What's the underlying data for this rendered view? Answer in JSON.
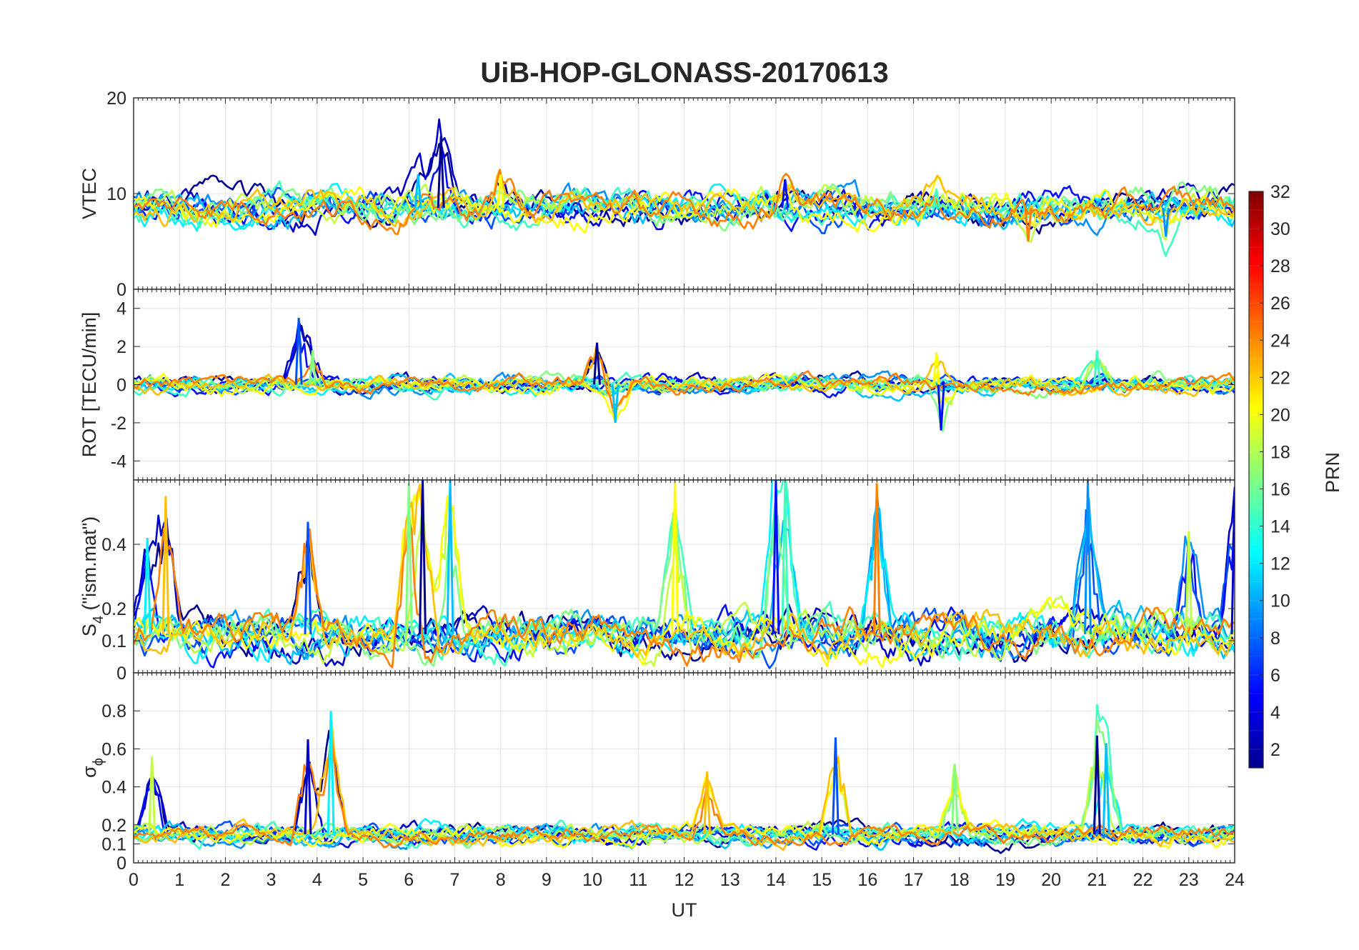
{
  "chart_data": {
    "type": "line",
    "title": "UiB-HOP-GLONASS-20170613",
    "x_axis": {
      "label": "UT",
      "range": [
        0,
        24
      ],
      "ticks": [
        0,
        1,
        2,
        3,
        4,
        5,
        6,
        7,
        8,
        9,
        10,
        11,
        12,
        13,
        14,
        15,
        16,
        17,
        18,
        19,
        20,
        21,
        22,
        23,
        24
      ]
    },
    "grid": true,
    "panels": [
      {
        "id": "vtec",
        "ylabel": "VTEC",
        "ylim": [
          0,
          20
        ],
        "yticks": [
          0,
          10,
          20
        ],
        "baseline": 8.5,
        "amplitude": 1.3,
        "features": [
          {
            "x": 6.7,
            "y": 16
          },
          {
            "x": 6.2,
            "y": 12
          },
          {
            "x": 8.0,
            "y": 12
          },
          {
            "x": 14.2,
            "y": 11.5
          },
          {
            "x": 17.5,
            "y": 10.5
          },
          {
            "x": 19.5,
            "y": 5
          },
          {
            "x": 22.5,
            "y": 5.5
          }
        ]
      },
      {
        "id": "rot",
        "ylabel": "ROT [TECU/min]",
        "ylim": [
          -5,
          5
        ],
        "yticks": [
          -4,
          -2,
          0,
          2,
          4
        ],
        "baseline": 0,
        "amplitude": 0.35,
        "features": [
          {
            "x": 3.6,
            "y": 3.5
          },
          {
            "x": 3.9,
            "y": 1.8
          },
          {
            "x": 10.1,
            "y": 2.2
          },
          {
            "x": 10.5,
            "y": -2.0
          },
          {
            "x": 17.5,
            "y": 1.7
          },
          {
            "x": 17.6,
            "y": -2.4
          },
          {
            "x": 21.0,
            "y": 1.8
          }
        ]
      },
      {
        "id": "s4",
        "ylabel": "S",
        "ylabel_sub": "4",
        "ylabel_tail": " (\"ism.mat\")",
        "ylim": [
          0,
          0.6
        ],
        "yticks": [
          0,
          0.1,
          0.2,
          0.4
        ],
        "baseline": 0.12,
        "amplitude": 0.05,
        "features": [
          {
            "x": 0.3,
            "y": 0.42
          },
          {
            "x": 0.7,
            "y": 0.55
          },
          {
            "x": 3.8,
            "y": 0.47
          },
          {
            "x": 6.0,
            "y": 0.59
          },
          {
            "x": 6.3,
            "y": 0.6
          },
          {
            "x": 6.9,
            "y": 0.6
          },
          {
            "x": 11.8,
            "y": 0.6
          },
          {
            "x": 14.0,
            "y": 0.6
          },
          {
            "x": 14.2,
            "y": 0.59
          },
          {
            "x": 16.2,
            "y": 0.59
          },
          {
            "x": 20.8,
            "y": 0.6
          },
          {
            "x": 23.0,
            "y": 0.44
          },
          {
            "x": 24.0,
            "y": 0.55
          }
        ]
      },
      {
        "id": "sigma",
        "ylabel": "σ",
        "ylabel_sub": "ϕ",
        "ylim": [
          0,
          1
        ],
        "yticks": [
          0,
          0.1,
          0.2,
          0.4,
          0.6,
          0.8
        ],
        "baseline": 0.15,
        "amplitude": 0.04,
        "features": [
          {
            "x": 0.4,
            "y": 0.56
          },
          {
            "x": 3.8,
            "y": 0.65
          },
          {
            "x": 4.3,
            "y": 0.8
          },
          {
            "x": 12.5,
            "y": 0.48
          },
          {
            "x": 15.3,
            "y": 0.66
          },
          {
            "x": 17.9,
            "y": 0.52
          },
          {
            "x": 21.0,
            "y": 0.67
          },
          {
            "x": 21.2,
            "y": 0.63
          }
        ]
      }
    ],
    "colorbar": {
      "label": "PRN",
      "range": [
        1,
        32
      ],
      "ticks": [
        2,
        4,
        6,
        8,
        10,
        12,
        14,
        16,
        18,
        20,
        22,
        24,
        26,
        28,
        30,
        32
      ],
      "colormap": [
        "#00008f",
        "#0000ff",
        "#0080ff",
        "#00ffff",
        "#80ff80",
        "#ffff00",
        "#ff8000",
        "#ff0000",
        "#800000"
      ]
    },
    "series": [
      {
        "prn": 1,
        "color": "#00008f"
      },
      {
        "prn": 2,
        "color": "#0000c8"
      },
      {
        "prn": 3,
        "color": "#0010ff"
      },
      {
        "prn": 5,
        "color": "#0050ff"
      },
      {
        "prn": 8,
        "color": "#0090ff"
      },
      {
        "prn": 10,
        "color": "#00c0ff"
      },
      {
        "prn": 12,
        "color": "#00f0ff"
      },
      {
        "prn": 14,
        "color": "#40ffbf"
      },
      {
        "prn": 16,
        "color": "#80ff80"
      },
      {
        "prn": 18,
        "color": "#c0ff40"
      },
      {
        "prn": 20,
        "color": "#ffff00"
      },
      {
        "prn": 22,
        "color": "#ffbf00"
      },
      {
        "prn": 24,
        "color": "#ff8000"
      }
    ]
  }
}
